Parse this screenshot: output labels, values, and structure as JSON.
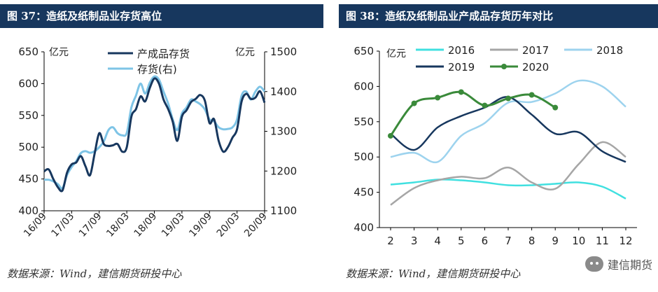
{
  "left": {
    "title": "图 37：造纸及纸制品业存货高位",
    "source": "数据来源：Wind，建信期货研投中心",
    "chart_data": {
      "type": "line",
      "title": "",
      "ylabel": "亿元",
      "y2label": "亿元",
      "ylim": [
        400,
        650
      ],
      "y2lim": [
        1100,
        1500
      ],
      "yticks": [
        400,
        450,
        500,
        550,
        600,
        650
      ],
      "y2ticks": [
        1100,
        1200,
        1300,
        1400,
        1500
      ],
      "xticks": [
        "16/09",
        "17/03",
        "17/09",
        "18/03",
        "18/09",
        "19/03",
        "19/09",
        "20/03",
        "20/09"
      ],
      "x": [
        "16/09",
        "16/10",
        "16/11",
        "16/12",
        "17/01",
        "17/02",
        "17/03",
        "17/04",
        "17/05",
        "17/06",
        "17/07",
        "17/08",
        "17/09",
        "17/10",
        "17/11",
        "17/12",
        "18/01",
        "18/02",
        "18/03",
        "18/04",
        "18/05",
        "18/06",
        "18/07",
        "18/08",
        "18/09",
        "18/10",
        "18/11",
        "18/12",
        "19/01",
        "19/02",
        "19/03",
        "19/04",
        "19/05",
        "19/06",
        "19/07",
        "19/08",
        "19/09",
        "19/10",
        "19/11",
        "19/12",
        "20/01",
        "20/02",
        "20/03",
        "20/04",
        "20/05",
        "20/06",
        "20/07",
        "20/08",
        "20/09"
      ],
      "legend": "top-center",
      "series": [
        {
          "name": "产成品存货",
          "axis": "left",
          "color": "#17375e",
          "values": [
            462,
            465,
            450,
            437,
            432,
            460,
            473,
            476,
            486,
            470,
            456,
            490,
            522,
            505,
            502,
            503,
            505,
            493,
            500,
            548,
            560,
            580,
            572,
            593,
            608,
            600,
            575,
            560,
            540,
            510,
            548,
            558,
            571,
            576,
            582,
            573,
            538,
            544,
            510,
            493,
            500,
            515,
            528,
            572,
            584,
            576,
            578,
            588,
            570
          ]
        },
        {
          "name": "存货(右)",
          "axis": "right",
          "color": "#7ec4e6",
          "values": [
            1178,
            1178,
            1174,
            1167,
            1157,
            1190,
            1210,
            1225,
            1245,
            1250,
            1246,
            1250,
            1260,
            1275,
            1303,
            1310,
            1295,
            1290,
            1296,
            1360,
            1390,
            1420,
            1395,
            1422,
            1438,
            1430,
            1400,
            1370,
            1330,
            1303,
            1345,
            1360,
            1380,
            1375,
            1368,
            1355,
            1330,
            1325,
            1310,
            1305,
            1306,
            1310,
            1330,
            1390,
            1400,
            1380,
            1400,
            1412,
            1400
          ]
        }
      ]
    }
  },
  "right": {
    "title": "图 38：造纸及纸制品业产成品存货历年对比",
    "chart_data": {
      "type": "line",
      "title": "",
      "ylabel": "亿元",
      "ylim": [
        400,
        650
      ],
      "yticks": [
        400,
        450,
        500,
        550,
        600,
        650
      ],
      "x": [
        2,
        3,
        4,
        5,
        6,
        7,
        8,
        9,
        10,
        11,
        12
      ],
      "legend": "top",
      "series": [
        {
          "name": "2016",
          "color": "#40e0e0",
          "marker": false,
          "values": [
            461,
            464,
            468,
            467,
            464,
            460,
            460,
            462,
            464,
            458,
            441
          ]
        },
        {
          "name": "2017",
          "color": "#a6a6a6",
          "marker": false,
          "values": [
            432,
            456,
            467,
            472,
            470,
            485,
            464,
            455,
            490,
            521,
            500
          ]
        },
        {
          "name": "2018",
          "color": "#9dd3ee",
          "marker": false,
          "values": [
            500,
            506,
            493,
            530,
            548,
            577,
            578,
            590,
            608,
            600,
            571
          ]
        },
        {
          "name": "2019",
          "color": "#17375e",
          "marker": false,
          "values": [
            533,
            510,
            542,
            558,
            570,
            585,
            560,
            533,
            535,
            508,
            493
          ]
        },
        {
          "name": "2020",
          "color": "#3a8a3a",
          "marker": true,
          "values": [
            530,
            576,
            584,
            592,
            573,
            583,
            588,
            570,
            null,
            null,
            null
          ]
        }
      ]
    },
    "watermark_text": "建信期货",
    "source": "数据来源：Wind，建信期货研投中心"
  }
}
